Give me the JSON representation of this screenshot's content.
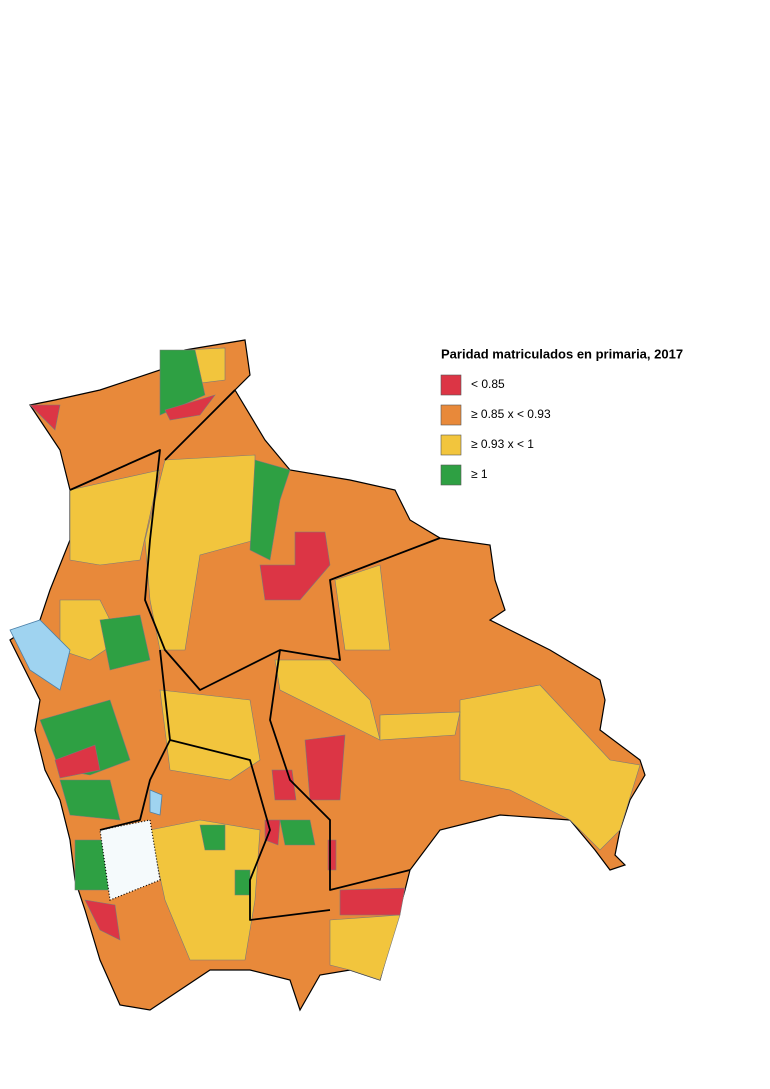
{
  "legend": {
    "title": "Paridad matriculados en primaria, 2017",
    "items": [
      {
        "label": "< 0.85",
        "color": "#dc3545"
      },
      {
        "label": "≥ 0.85 x < 0.93",
        "color": "#e8893a"
      },
      {
        "label": "≥ 0.93 x < 1",
        "color": "#f2c53d"
      },
      {
        "label": "≥ 1",
        "color": "#2ea043"
      }
    ]
  }
}
